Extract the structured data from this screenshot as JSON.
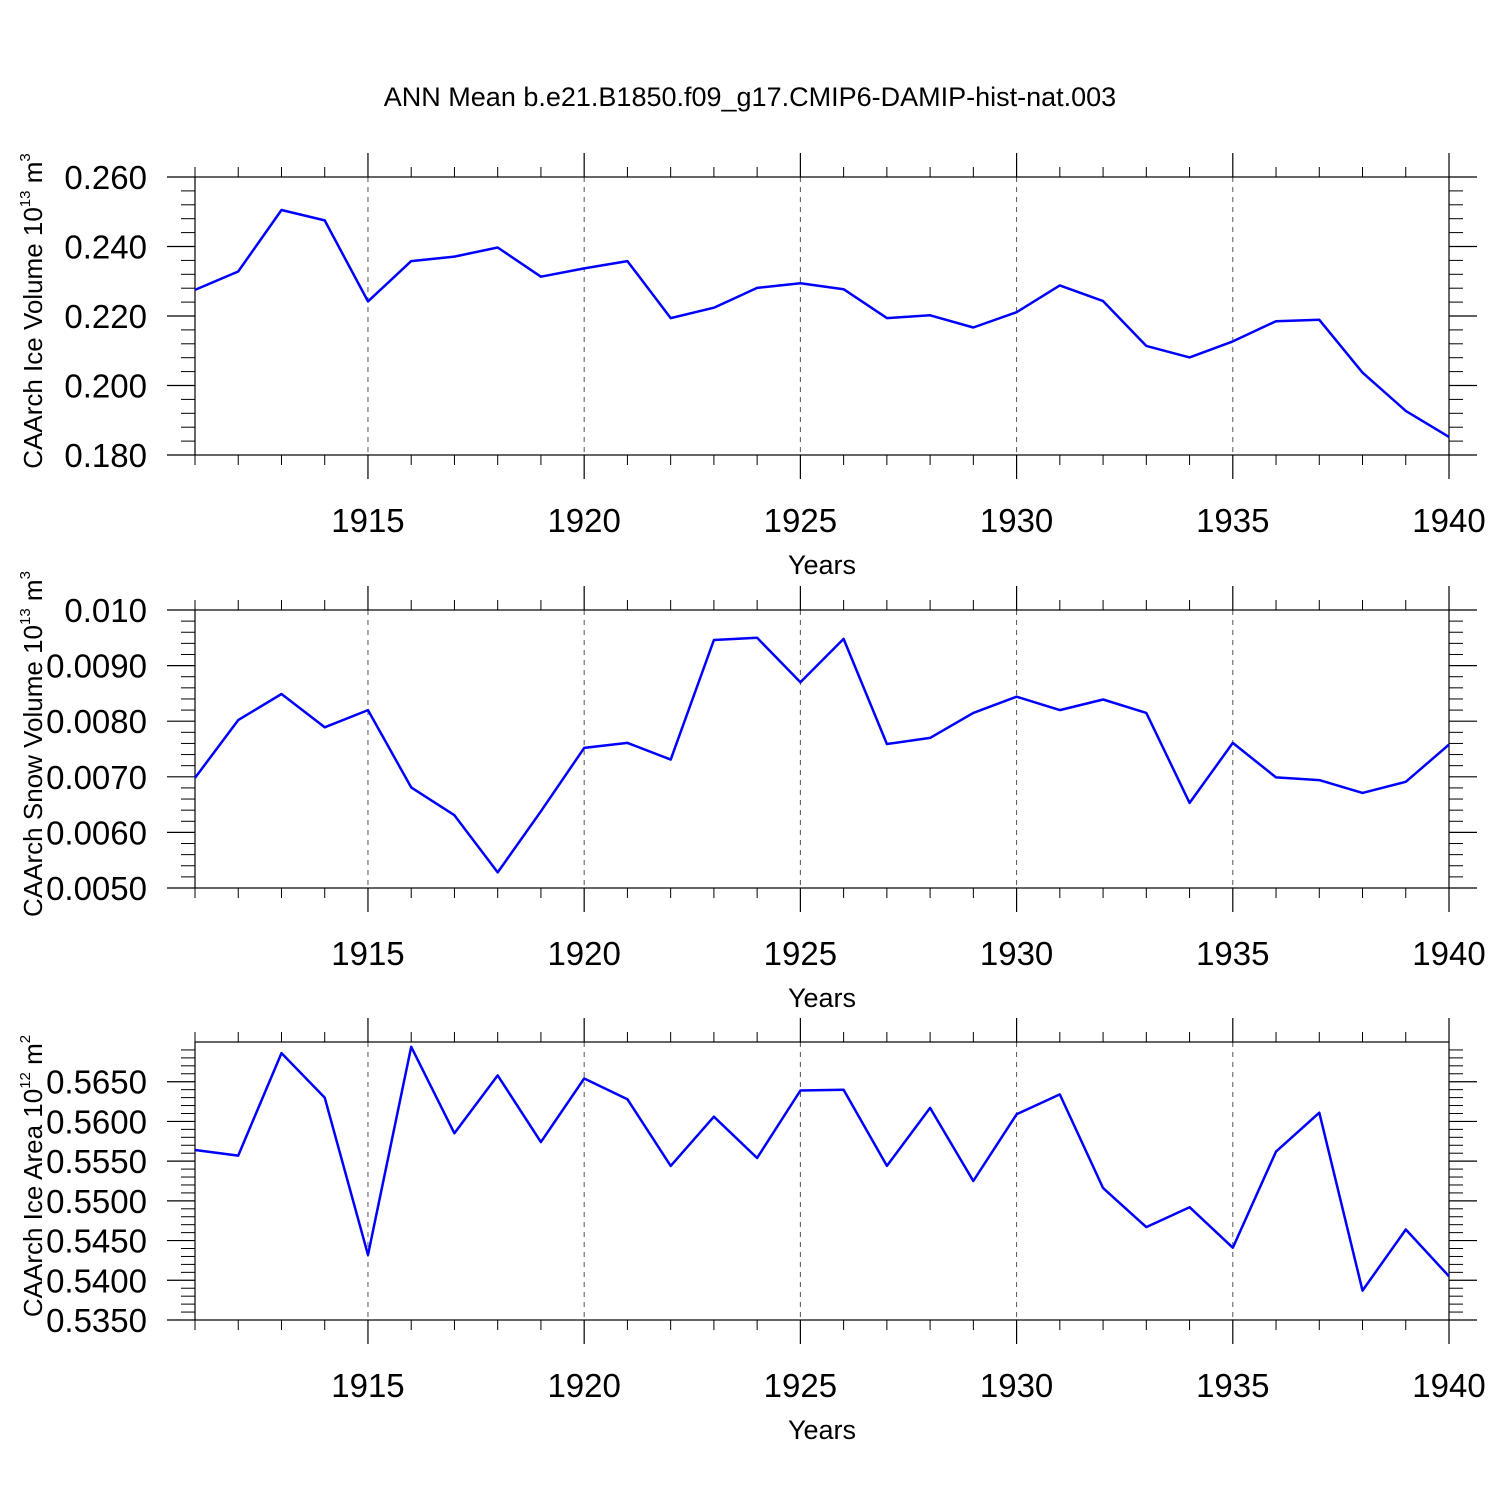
{
  "figure": {
    "title": "ANN Mean b.e21.B1850.f09_g17.CMIP6-DAMIP-hist-nat.003",
    "line_color": "#0000ff"
  },
  "chart_data": [
    {
      "type": "line",
      "ylabel": "CAArch Ice Volume 10",
      "ylabel_exp": "13",
      "ylabel_unit": "m",
      "ylabel_unit_exp": "3",
      "xlabel": "Years",
      "xlim": [
        1911,
        1940
      ],
      "ylim": [
        0.18,
        0.26
      ],
      "yticks": [
        0.18,
        0.2,
        0.22,
        0.24,
        0.26
      ],
      "ytick_labels": [
        "0.180",
        "0.200",
        "0.220",
        "0.240",
        "0.260"
      ],
      "xticks": [
        1915,
        1920,
        1925,
        1930,
        1935,
        1940
      ],
      "xtick_labels": [
        "1915",
        "1920",
        "1925",
        "1930",
        "1935",
        "1940"
      ],
      "x": [
        1911,
        1912,
        1913,
        1914,
        1915,
        1916,
        1917,
        1918,
        1919,
        1920,
        1921,
        1922,
        1923,
        1924,
        1925,
        1926,
        1927,
        1928,
        1929,
        1930,
        1931,
        1932,
        1933,
        1934,
        1935,
        1936,
        1937,
        1938,
        1939,
        1940
      ],
      "values": [
        0.2275,
        0.2328,
        0.2505,
        0.2475,
        0.2242,
        0.2358,
        0.2371,
        0.2397,
        0.2313,
        0.2337,
        0.2358,
        0.2194,
        0.2224,
        0.2281,
        0.2294,
        0.2277,
        0.2194,
        0.2202,
        0.2167,
        0.2211,
        0.2288,
        0.2243,
        0.2114,
        0.2081,
        0.2127,
        0.2185,
        0.2189,
        0.2037,
        0.1927,
        0.1852
      ]
    },
    {
      "type": "line",
      "ylabel": "CAArch Snow Volume 10",
      "ylabel_exp": "13",
      "ylabel_unit": "m",
      "ylabel_unit_exp": "3",
      "xlabel": "Years",
      "xlim": [
        1911,
        1940
      ],
      "ylim": [
        0.005,
        0.01
      ],
      "yticks": [
        0.005,
        0.006,
        0.007,
        0.008,
        0.009,
        0.01
      ],
      "ytick_labels": [
        "0.0050",
        "0.0060",
        "0.0070",
        "0.0080",
        "0.0090",
        "0.010"
      ],
      "xticks": [
        1915,
        1920,
        1925,
        1930,
        1935,
        1940
      ],
      "xtick_labels": [
        "1915",
        "1920",
        "1925",
        "1930",
        "1935",
        "1940"
      ],
      "x": [
        1911,
        1912,
        1913,
        1914,
        1915,
        1916,
        1917,
        1918,
        1919,
        1920,
        1921,
        1922,
        1923,
        1924,
        1925,
        1926,
        1927,
        1928,
        1929,
        1930,
        1931,
        1932,
        1933,
        1934,
        1935,
        1936,
        1937,
        1938,
        1939,
        1940
      ],
      "values": [
        0.00698,
        0.00802,
        0.00849,
        0.00789,
        0.0082,
        0.00681,
        0.00631,
        0.00528,
        0.00638,
        0.00752,
        0.00761,
        0.00731,
        0.00946,
        0.0095,
        0.0087,
        0.00948,
        0.00759,
        0.0077,
        0.00815,
        0.00844,
        0.0082,
        0.00839,
        0.00815,
        0.00653,
        0.00761,
        0.00699,
        0.00694,
        0.00671,
        0.00691,
        0.00758
      ]
    },
    {
      "type": "line",
      "ylabel": "CAArch Ice Area 10",
      "ylabel_exp": "12",
      "ylabel_unit": "m",
      "ylabel_unit_exp": "2",
      "xlabel": "Years",
      "xlim": [
        1911,
        1940
      ],
      "ylim": [
        0.535,
        0.57
      ],
      "yticks": [
        0.535,
        0.54,
        0.545,
        0.55,
        0.555,
        0.56,
        0.565
      ],
      "ytick_labels": [
        "0.5350",
        "0.5400",
        "0.5450",
        "0.5500",
        "0.5550",
        "0.5600",
        "0.5650"
      ],
      "xticks": [
        1915,
        1920,
        1925,
        1930,
        1935,
        1940
      ],
      "xtick_labels": [
        "1915",
        "1920",
        "1925",
        "1930",
        "1935",
        "1940"
      ],
      "x": [
        1911,
        1912,
        1913,
        1914,
        1915,
        1916,
        1917,
        1918,
        1919,
        1920,
        1921,
        1922,
        1923,
        1924,
        1925,
        1926,
        1927,
        1928,
        1929,
        1930,
        1931,
        1932,
        1933,
        1934,
        1935,
        1936,
        1937,
        1938,
        1939,
        1940
      ],
      "values": [
        0.5564,
        0.5557,
        0.5686,
        0.563,
        0.5432,
        0.5694,
        0.5585,
        0.5658,
        0.5574,
        0.5654,
        0.5628,
        0.5544,
        0.5606,
        0.5554,
        0.5639,
        0.564,
        0.5544,
        0.5617,
        0.5525,
        0.5609,
        0.5634,
        0.5516,
        0.5467,
        0.5492,
        0.5441,
        0.5562,
        0.5611,
        0.5387,
        0.5464,
        0.5405
      ]
    }
  ]
}
